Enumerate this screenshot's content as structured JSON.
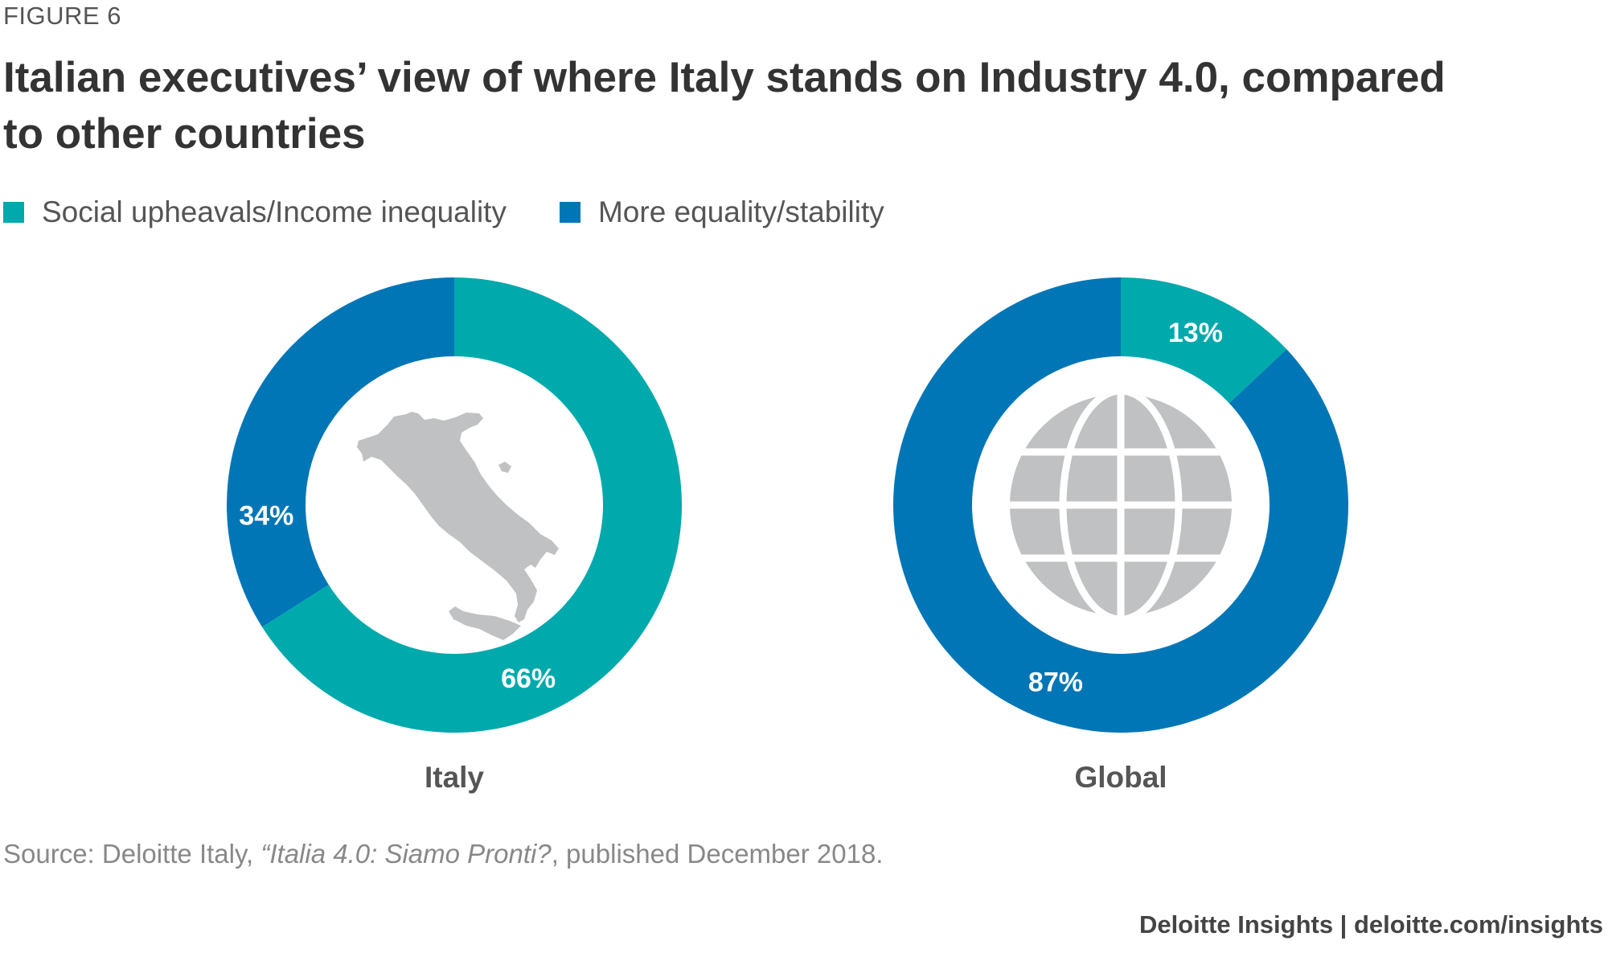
{
  "header": {
    "figure_label": "FIGURE 6",
    "title": "Italian executives’ view of where Italy stands on Industry 4.0, compared to other countries"
  },
  "colors": {
    "social": "#00a9ac",
    "equality": "#0076b6",
    "icon": "#c0c1c3"
  },
  "legend": [
    {
      "label": "Social upheavals/Income inequality",
      "color": "#00a9ac"
    },
    {
      "label": "More equality/stability",
      "color": "#0076b6"
    }
  ],
  "chart_data": [
    {
      "type": "pie",
      "variant": "donut",
      "name": "Italy",
      "icon": "italy-map-icon",
      "categories": [
        "Social upheavals/Income inequality",
        "More equality/stability"
      ],
      "values": [
        66,
        34
      ],
      "labels": [
        "66%",
        "34%"
      ]
    },
    {
      "type": "pie",
      "variant": "donut",
      "name": "Global",
      "icon": "globe-icon",
      "categories": [
        "Social upheavals/Income inequality",
        "More equality/stability"
      ],
      "values": [
        13,
        87
      ],
      "labels": [
        "13%",
        "87%"
      ]
    }
  ],
  "footer": {
    "source_prefix": "Source: Deloitte Italy, ",
    "source_italic": "“Italia 4.0: Siamo Pronti?",
    "source_suffix": ", published December 2018.",
    "credit": "Deloitte Insights | deloitte.com/insights"
  }
}
